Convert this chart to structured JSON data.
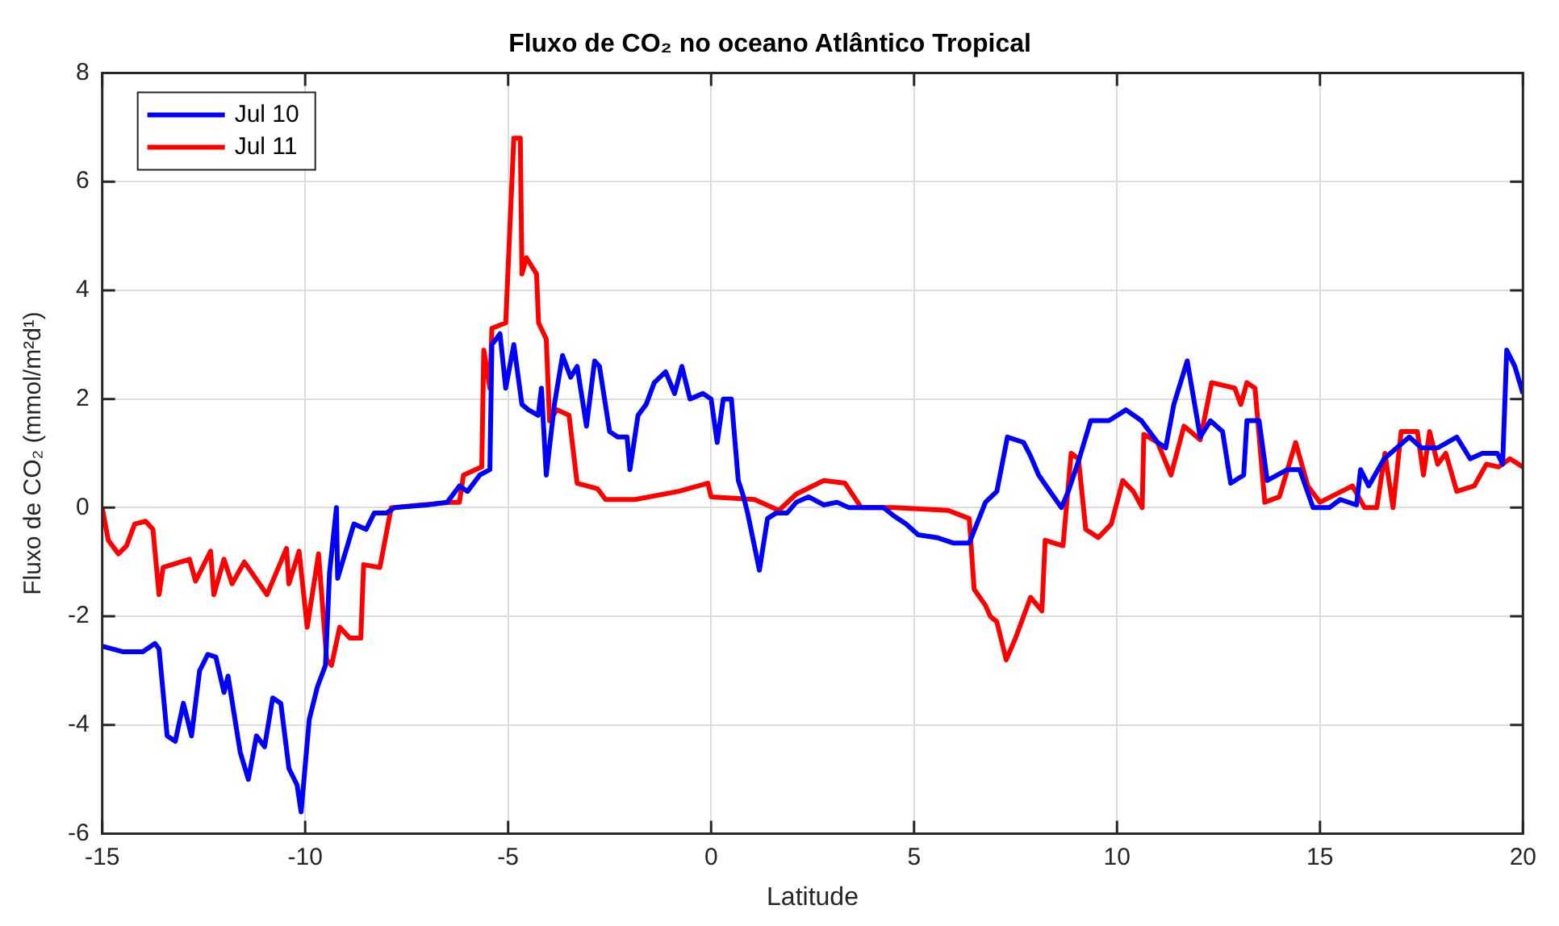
{
  "chart_data": {
    "type": "line",
    "title": "Fluxo de CO₂ no oceano Atlântico Tropical",
    "xlabel": "Latitude",
    "ylabel": "Fluxo de CO₂ (mmol/m²d¹)",
    "xlim": [
      -15,
      20
    ],
    "xticks": [
      -15,
      -10,
      -5,
      0,
      5,
      10,
      15,
      20
    ],
    "ylim": [
      -6,
      8
    ],
    "yticks": [
      -6,
      -4,
      -2,
      0,
      2,
      4,
      6,
      8
    ],
    "grid": true,
    "legend": "top left",
    "marker": "none",
    "line_style": "solid",
    "series": [
      {
        "name": "Jul 10",
        "color": "#0000ff",
        "x": [
          -15,
          -14.5,
          -14,
          -13.7,
          -13.6,
          -13.4,
          -13.2,
          -13,
          -12.8,
          -12.6,
          -12.4,
          -12.2,
          -12,
          -11.9,
          -11.6,
          -11.4,
          -11.2,
          -11,
          -10.8,
          -10.6,
          -10.4,
          -10.2,
          -10.1,
          -9.9,
          -9.7,
          -9.5,
          -9.4,
          -9.23,
          -9.2,
          -9,
          -8.8,
          -8.5,
          -8.3,
          -8,
          -7.8,
          -7,
          -6.5,
          -6.2,
          -6,
          -5.7,
          -5.45,
          -5.4,
          -5.2,
          -5.06,
          -4.86,
          -4.66,
          -4.5,
          -4.26,
          -4.18,
          -4.06,
          -3.86,
          -3.66,
          -3.46,
          -3.3,
          -3.07,
          -2.87,
          -2.75,
          -2.5,
          -2.3,
          -2.07,
          -2,
          -1.8,
          -1.6,
          -1.4,
          -1.12,
          -0.9,
          -0.72,
          -0.52,
          -0.2,
          0,
          0.15,
          0.3,
          0.5,
          0.67,
          0.8,
          0.9,
          1.19,
          1.39,
          1.6,
          1.87,
          2.1,
          2.4,
          2.78,
          3.1,
          3.4,
          3.85,
          4.25,
          4.5,
          4.8,
          5.1,
          5.56,
          5.96,
          6.36,
          6.76,
          7.04,
          7.3,
          7.7,
          7.87,
          8.07,
          8.3,
          8.63,
          8.8,
          9.07,
          9.35,
          9.8,
          10.22,
          10.6,
          11,
          11.2,
          11.4,
          11.73,
          12.05,
          12.3,
          12.6,
          12.8,
          13.12,
          13.2,
          13.5,
          13.7,
          14.2,
          14.5,
          14.83,
          15.23,
          15.5,
          15.9,
          16,
          16.2,
          16.58,
          17.2,
          17.5,
          17.9,
          18.37,
          18.7,
          19,
          19.37,
          19.5,
          19.6,
          19.8,
          20
        ],
        "values": [
          -2.55,
          -2.65,
          -2.65,
          -2.5,
          -2.6,
          -4.2,
          -4.3,
          -3.6,
          -4.2,
          -3,
          -2.7,
          -2.75,
          -3.4,
          -3.1,
          -4.5,
          -5,
          -4.2,
          -4.4,
          -3.5,
          -3.6,
          -4.8,
          -5.1,
          -5.6,
          -3.9,
          -3.3,
          -2.9,
          -1.2,
          0,
          -1.3,
          -0.8,
          -0.3,
          -0.4,
          -0.1,
          -0.1,
          0,
          0.05,
          0.1,
          0.4,
          0.3,
          0.6,
          0.7,
          3,
          3.2,
          2.2,
          3,
          1.9,
          1.8,
          1.7,
          2.2,
          0.6,
          1.9,
          2.8,
          2.4,
          2.6,
          1.5,
          2.7,
          2.6,
          1.4,
          1.3,
          1.3,
          0.7,
          1.7,
          1.9,
          2.3,
          2.5,
          2.1,
          2.6,
          2,
          2.1,
          2,
          1.2,
          2,
          2,
          0.5,
          0.2,
          -0.1,
          -1.15,
          -0.2,
          -0.1,
          -0.1,
          0.1,
          0.2,
          0.05,
          0.1,
          0,
          0,
          0,
          -0.15,
          -0.3,
          -0.5,
          -0.55,
          -0.65,
          -0.65,
          0.1,
          0.3,
          1.3,
          1.2,
          0.95,
          0.6,
          0.35,
          0,
          0.3,
          0.9,
          1.6,
          1.6,
          1.8,
          1.6,
          1.2,
          1.1,
          1.9,
          2.7,
          1.3,
          1.6,
          1.4,
          0.45,
          0.6,
          1.6,
          1.6,
          0.5,
          0.7,
          0.7,
          0,
          0,
          0.15,
          0.05,
          0.7,
          0.4,
          0.9,
          1.3,
          1.1,
          1.1,
          1.3,
          0.9,
          1,
          1,
          0.8,
          2.9,
          2.6,
          2.1
        ]
      },
      {
        "name": "Jul 11",
        "color": "#ff0000",
        "x": [
          -15,
          -14.85,
          -14.6,
          -14.4,
          -14.2,
          -13.93,
          -13.75,
          -13.6,
          -13.5,
          -12.85,
          -12.7,
          -12.33,
          -12.25,
          -12,
          -11.8,
          -11.5,
          -10.94,
          -10.46,
          -10.4,
          -10.15,
          -9.95,
          -9.67,
          -9.47,
          -9.35,
          -9.15,
          -8.9,
          -8.63,
          -8.56,
          -8.16,
          -7.88,
          -6.37,
          -6.2,
          -6.1,
          -5.65,
          -5.6,
          -5.45,
          -5.4,
          -5.06,
          -4.86,
          -4.7,
          -4.66,
          -4.55,
          -4.3,
          -4.25,
          -4.06,
          -3.98,
          -3.8,
          -3.5,
          -3.3,
          -2.8,
          -2.6,
          -1.87,
          -0.8,
          -0.08,
          0,
          1.07,
          1.67,
          2.1,
          2.78,
          3.3,
          3.7,
          4.5,
          5.84,
          6.36,
          6.48,
          6.76,
          6.88,
          7.04,
          7.27,
          7.5,
          7.87,
          8.15,
          8.23,
          8.67,
          8.87,
          9.05,
          9.23,
          9.54,
          9.86,
          10.14,
          10.4,
          10.62,
          10.66,
          11,
          11.33,
          11.65,
          12.05,
          12.33,
          12.9,
          13.05,
          13.2,
          13.4,
          13.64,
          14,
          14.4,
          14.7,
          15,
          15.8,
          16.1,
          16.4,
          16.6,
          16.8,
          17,
          17.4,
          17.55,
          17.7,
          17.9,
          18.1,
          18.37,
          18.8,
          19.1,
          19.4,
          19.68,
          20
        ],
        "values": [
          0,
          -0.6,
          -0.85,
          -0.7,
          -0.3,
          -0.25,
          -0.4,
          -1.6,
          -1.1,
          -0.95,
          -1.35,
          -0.8,
          -1.6,
          -0.95,
          -1.4,
          -1,
          -1.6,
          -0.75,
          -1.4,
          -0.8,
          -2.2,
          -0.85,
          -2.8,
          -2.9,
          -2.2,
          -2.4,
          -2.4,
          -1.05,
          -1.1,
          0,
          0.1,
          0.1,
          0.6,
          0.75,
          2.9,
          2.2,
          3.3,
          3.4,
          6.8,
          6.8,
          4.3,
          4.6,
          4.3,
          3.4,
          3.1,
          1.6,
          1.8,
          1.7,
          0.45,
          0.35,
          0.15,
          0.15,
          0.3,
          0.45,
          0.2,
          0.15,
          -0.05,
          0.25,
          0.5,
          0.45,
          0,
          0,
          -0.05,
          -0.2,
          -1.5,
          -1.8,
          -2,
          -2.1,
          -2.8,
          -2.4,
          -1.65,
          -1.9,
          -0.6,
          -0.7,
          1,
          0.9,
          -0.4,
          -0.55,
          -0.3,
          0.5,
          0.3,
          0,
          1.35,
          1.2,
          0.6,
          1.5,
          1.25,
          2.3,
          2.2,
          1.9,
          2.3,
          2.2,
          0.1,
          0.2,
          1.2,
          0.4,
          0.1,
          0.4,
          0,
          0,
          1,
          0,
          1.4,
          1.4,
          0.6,
          1.4,
          0.8,
          1,
          0.3,
          0.4,
          0.8,
          0.75,
          0.9,
          0.75
        ]
      }
    ]
  }
}
